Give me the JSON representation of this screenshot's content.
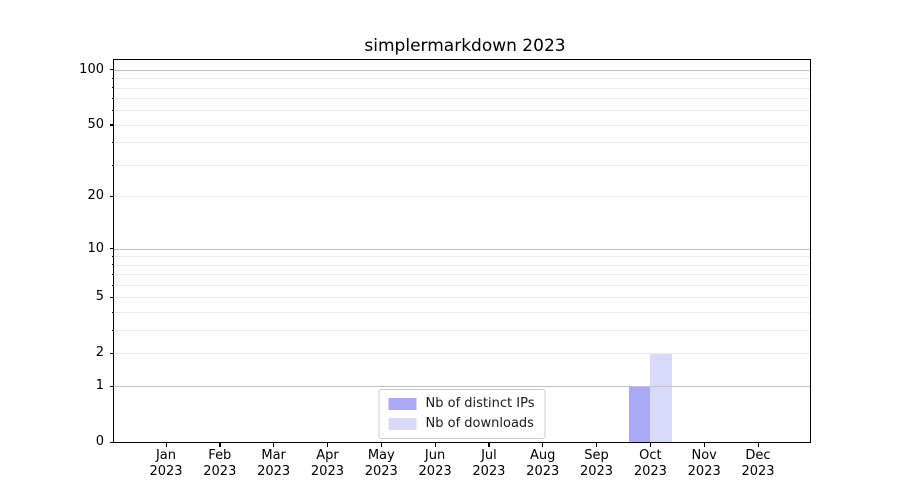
{
  "figure": {
    "background": "#ffffff",
    "text_color": "#000000",
    "grid_major_color": "#c0c0c0",
    "grid_minor_color": "#eaeaea"
  },
  "chart_data": {
    "type": "bar",
    "title": "simplermarkdown 2023",
    "categories": [
      "Jan 2023",
      "Feb 2023",
      "Mar 2023",
      "Apr 2023",
      "May 2023",
      "Jun 2023",
      "Jul 2023",
      "Aug 2023",
      "Sep 2023",
      "Oct 2023",
      "Nov 2023",
      "Dec 2023"
    ],
    "series": [
      {
        "name": "Nb of distinct IPs",
        "color": "#a9a9f4",
        "values": [
          0,
          0,
          0,
          0,
          0,
          0,
          0,
          0,
          0,
          1,
          0,
          0
        ]
      },
      {
        "name": "Nb of downloads",
        "color": "#d8d8f8",
        "values": [
          0,
          0,
          0,
          0,
          0,
          0,
          0,
          0,
          0,
          2,
          0,
          0
        ]
      }
    ],
    "xlabel": "",
    "ylabel": "",
    "yscale": "log1p",
    "ylim": [
      0,
      113
    ],
    "yticks": [
      0,
      1,
      2,
      5,
      10,
      20,
      50,
      100
    ],
    "grid_major": [
      1,
      10,
      100
    ],
    "grid_minor": [
      2,
      3,
      4,
      5,
      6,
      7,
      8,
      9,
      20,
      30,
      40,
      50,
      60,
      70,
      80,
      90
    ],
    "grid": true,
    "legend_position": "bottom-center"
  }
}
